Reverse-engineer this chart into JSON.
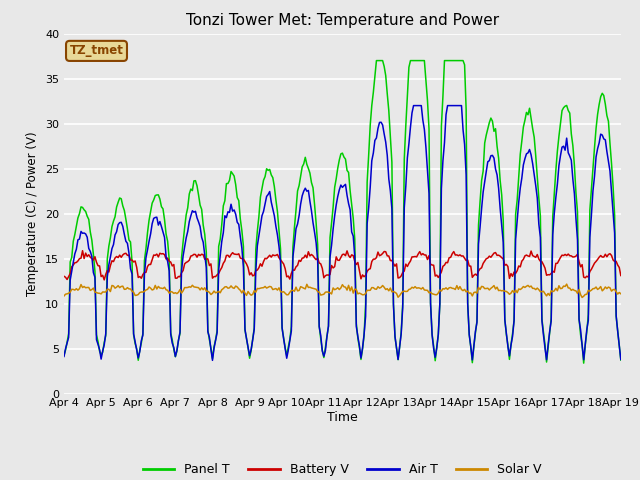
{
  "title": "Tonzi Tower Met: Temperature and Power",
  "xlabel": "Time",
  "ylabel": "Temperature (C) / Power (V)",
  "ylim": [
    0,
    40
  ],
  "yticks": [
    0,
    5,
    10,
    15,
    20,
    25,
    30,
    35,
    40
  ],
  "x_labels": [
    "Apr 4",
    "Apr 5",
    "Apr 6",
    "Apr 7",
    "Apr 8",
    "Apr 9",
    "Apr 10",
    "Apr 11",
    "Apr 12",
    "Apr 13",
    "Apr 14",
    "Apr 15",
    "Apr 16",
    "Apr 17",
    "Apr 18",
    "Apr 19"
  ],
  "colors": {
    "panel_t": "#00cc00",
    "battery_v": "#cc0000",
    "air_t": "#0000cc",
    "solar_v": "#cc8800"
  },
  "legend_label": "TZ_tmet",
  "legend_box_facecolor": "#e8d898",
  "legend_box_edge": "#884400",
  "bg_color": "#e8e8e8",
  "plot_bg": "#e8e8e8",
  "grid_color": "#ffffff",
  "figsize": [
    6.4,
    4.8
  ],
  "dpi": 100
}
